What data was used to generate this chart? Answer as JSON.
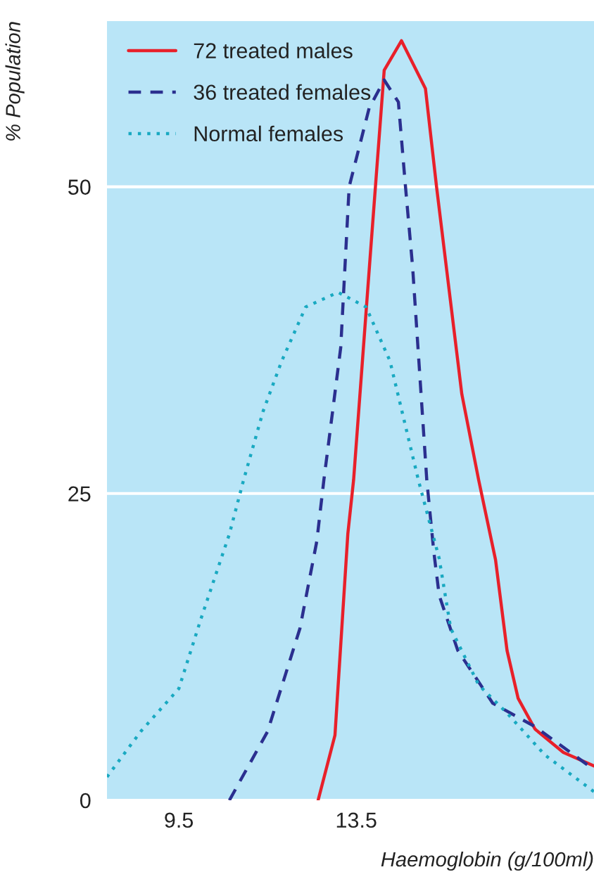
{
  "chart_data": {
    "type": "line",
    "xlabel": "Haemoglobin (g/100ml)",
    "ylabel": "% Population",
    "xlim": [
      7.88,
      18.86
    ],
    "ylim": [
      0,
      63.5
    ],
    "xticks": [
      9.5,
      13.5
    ],
    "yticks": [
      0,
      25,
      50
    ],
    "grid": "y",
    "legend": "top left",
    "series": [
      {
        "name": "72 treated males",
        "color": "#e8202a",
        "line_style": "solid",
        "x": [
          12.64,
          13.02,
          13.31,
          13.44,
          13.82,
          14.13,
          14.52,
          15.06,
          15.31,
          15.88,
          16.26,
          16.64,
          16.9,
          17.15,
          17.53,
          18.17,
          18.86
        ],
        "values": [
          0,
          5.3,
          21.7,
          26.1,
          44.6,
          59.5,
          61.9,
          58.0,
          50,
          33.1,
          26.1,
          19.6,
          12.2,
          8.3,
          5.8,
          3.9,
          2.8
        ]
      },
      {
        "name": "36 treated females",
        "color": "#2b2f8f",
        "line_style": "dashed",
        "x": [
          10.64,
          11.5,
          12.23,
          12.61,
          12.77,
          13.15,
          13.34,
          13.79,
          14.13,
          14.45,
          14.61,
          14.77,
          15.09,
          15.25,
          15.37,
          15.79,
          16.58,
          17.53,
          18.33,
          18.86
        ],
        "values": [
          0,
          5.6,
          14.0,
          21.1,
          26.1,
          36.9,
          50,
          56.4,
          58.7,
          56.9,
          50,
          43.5,
          26.1,
          20.2,
          16.7,
          12.2,
          7.9,
          6.0,
          3.9,
          2.5
        ]
      },
      {
        "name": "Normal females",
        "color": "#19a9c1",
        "line_style": "dotted",
        "x": [
          7.88,
          8.64,
          9.5,
          10.0,
          10.64,
          10.96,
          11.4,
          11.82,
          12.36,
          13.09,
          13.72,
          14.26,
          14.9,
          15.37,
          15.63,
          16.26,
          16.9,
          17.75,
          18.86
        ],
        "values": [
          1.9,
          5.6,
          9.1,
          14.8,
          21.7,
          26.1,
          31.7,
          35.8,
          40.2,
          41.4,
          40.2,
          35.8,
          26.1,
          19.7,
          14.0,
          9.4,
          7.1,
          3.7,
          0.7
        ]
      }
    ]
  }
}
